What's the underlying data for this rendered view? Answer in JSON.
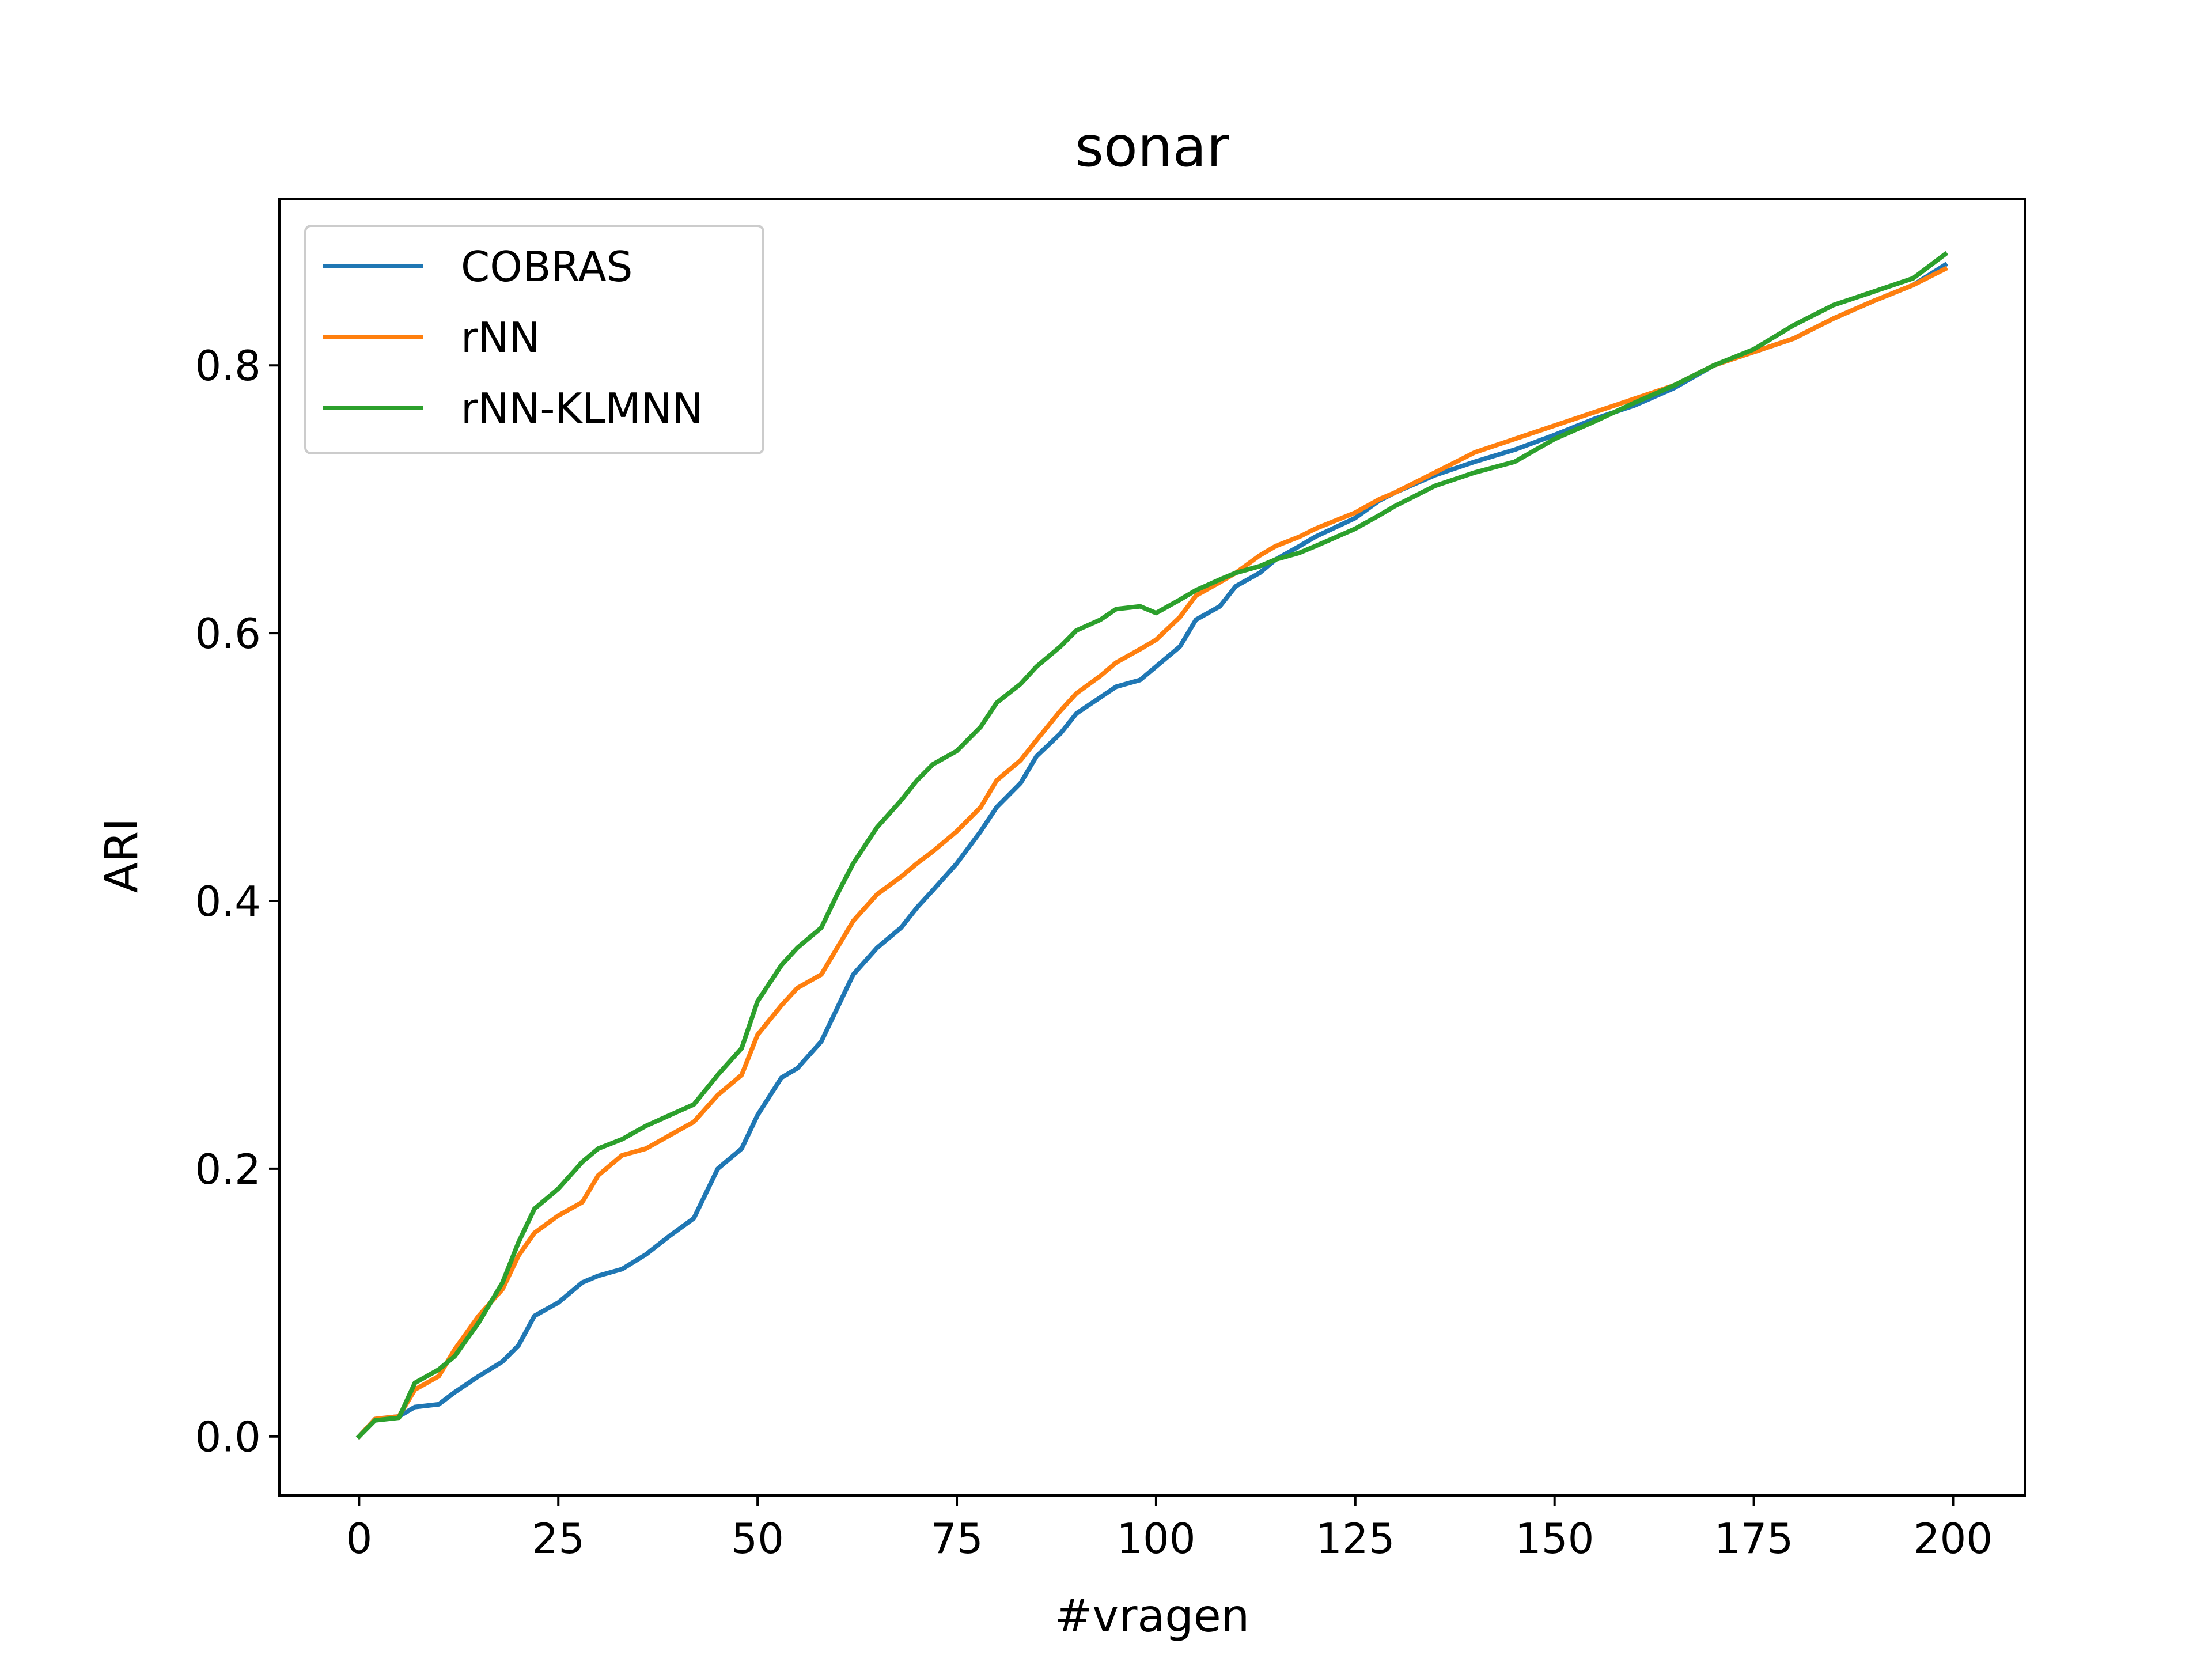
{
  "chart_data": {
    "type": "line",
    "title": "sonar",
    "xlabel": "#vragen",
    "ylabel": "ARI",
    "xlim": [
      -10,
      209
    ],
    "ylim": [
      -0.044,
      0.924
    ],
    "xticks": [
      0,
      25,
      50,
      75,
      100,
      125,
      150,
      175,
      200
    ],
    "xtick_labels": [
      "0",
      "25",
      "50",
      "75",
      "100",
      "125",
      "150",
      "175",
      "200"
    ],
    "yticks": [
      0.0,
      0.2,
      0.4,
      0.6,
      0.8
    ],
    "ytick_labels": [
      "0.0",
      "0.2",
      "0.4",
      "0.6",
      "0.8"
    ],
    "grid": false,
    "legend_position": "top-left",
    "series": [
      {
        "name": "COBRAS",
        "color": "#1f77b4",
        "x": [
          0,
          2,
          5,
          7,
          10,
          12,
          15,
          18,
          20,
          22,
          25,
          28,
          30,
          33,
          36,
          39,
          42,
          45,
          48,
          50,
          53,
          55,
          58,
          60,
          62,
          65,
          68,
          70,
          72,
          75,
          78,
          80,
          83,
          85,
          88,
          90,
          93,
          95,
          98,
          100,
          103,
          105,
          108,
          110,
          113,
          115,
          118,
          120,
          125,
          128,
          130,
          135,
          140,
          145,
          150,
          155,
          160,
          165,
          170,
          175,
          180,
          185,
          190,
          195,
          199
        ],
        "values": [
          0.0,
          0.013,
          0.015,
          0.022,
          0.024,
          0.033,
          0.045,
          0.056,
          0.068,
          0.09,
          0.1,
          0.115,
          0.12,
          0.125,
          0.136,
          0.15,
          0.163,
          0.2,
          0.215,
          0.24,
          0.268,
          0.275,
          0.295,
          0.32,
          0.345,
          0.365,
          0.38,
          0.395,
          0.408,
          0.428,
          0.452,
          0.47,
          0.488,
          0.508,
          0.525,
          0.54,
          0.552,
          0.56,
          0.565,
          0.575,
          0.59,
          0.61,
          0.62,
          0.635,
          0.645,
          0.655,
          0.665,
          0.672,
          0.686,
          0.699,
          0.705,
          0.718,
          0.728,
          0.737,
          0.748,
          0.76,
          0.77,
          0.783,
          0.8,
          0.81,
          0.82,
          0.835,
          0.848,
          0.86,
          0.875
        ]
      },
      {
        "name": "rNN",
        "color": "#ff7f0e",
        "x": [
          0,
          2,
          5,
          7,
          10,
          12,
          15,
          18,
          20,
          22,
          25,
          28,
          30,
          33,
          36,
          39,
          42,
          45,
          48,
          50,
          53,
          55,
          58,
          60,
          62,
          65,
          68,
          70,
          72,
          75,
          78,
          80,
          83,
          85,
          88,
          90,
          93,
          95,
          98,
          100,
          103,
          105,
          108,
          110,
          113,
          115,
          118,
          120,
          125,
          128,
          130,
          135,
          140,
          145,
          150,
          155,
          160,
          165,
          170,
          175,
          180,
          185,
          190,
          195,
          199
        ],
        "values": [
          0.0,
          0.013,
          0.015,
          0.035,
          0.045,
          0.065,
          0.09,
          0.11,
          0.135,
          0.152,
          0.165,
          0.175,
          0.195,
          0.21,
          0.215,
          0.225,
          0.235,
          0.255,
          0.27,
          0.3,
          0.322,
          0.335,
          0.345,
          0.365,
          0.385,
          0.405,
          0.418,
          0.428,
          0.437,
          0.452,
          0.47,
          0.49,
          0.505,
          0.52,
          0.542,
          0.555,
          0.568,
          0.578,
          0.588,
          0.595,
          0.612,
          0.628,
          0.638,
          0.645,
          0.658,
          0.665,
          0.672,
          0.678,
          0.69,
          0.7,
          0.705,
          0.72,
          0.735,
          0.745,
          0.755,
          0.765,
          0.775,
          0.785,
          0.8,
          0.81,
          0.82,
          0.835,
          0.848,
          0.86,
          0.872
        ]
      },
      {
        "name": "rNN-KLMNN",
        "color": "#2ca02c",
        "x": [
          0,
          2,
          5,
          7,
          10,
          12,
          15,
          18,
          20,
          22,
          25,
          28,
          30,
          33,
          36,
          39,
          42,
          45,
          48,
          50,
          53,
          55,
          58,
          60,
          62,
          65,
          68,
          70,
          72,
          75,
          78,
          80,
          83,
          85,
          88,
          90,
          93,
          95,
          98,
          100,
          103,
          105,
          108,
          110,
          113,
          115,
          118,
          120,
          125,
          128,
          130,
          135,
          140,
          145,
          150,
          155,
          160,
          165,
          170,
          175,
          180,
          185,
          190,
          195,
          199
        ],
        "values": [
          0.0,
          0.012,
          0.014,
          0.04,
          0.05,
          0.06,
          0.085,
          0.115,
          0.145,
          0.17,
          0.185,
          0.205,
          0.215,
          0.222,
          0.232,
          0.24,
          0.248,
          0.27,
          0.29,
          0.325,
          0.352,
          0.365,
          0.38,
          0.405,
          0.428,
          0.455,
          0.475,
          0.49,
          0.502,
          0.512,
          0.53,
          0.548,
          0.562,
          0.575,
          0.59,
          0.602,
          0.61,
          0.618,
          0.62,
          0.615,
          0.625,
          0.632,
          0.64,
          0.645,
          0.65,
          0.655,
          0.66,
          0.665,
          0.678,
          0.688,
          0.695,
          0.71,
          0.72,
          0.728,
          0.745,
          0.758,
          0.772,
          0.785,
          0.8,
          0.812,
          0.83,
          0.845,
          0.855,
          0.865,
          0.883
        ]
      }
    ]
  }
}
